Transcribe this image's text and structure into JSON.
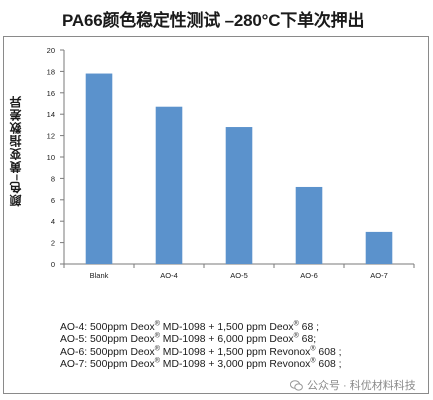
{
  "chart_data": {
    "type": "bar",
    "title": "PA66颜色稳定性测试 –280°C下单次押出",
    "ylabel": "颜色–黄变指数差异",
    "xlabel": "",
    "categories": [
      "Blank",
      "AO-4",
      "AO-5",
      "AO-6",
      "AO-7"
    ],
    "values": [
      17.8,
      14.7,
      12.8,
      7.2,
      3.0
    ],
    "ylim": [
      0,
      20
    ],
    "yticks": [
      0,
      2,
      4,
      6,
      8,
      10,
      12,
      14,
      16,
      18,
      20
    ],
    "grid": false,
    "bar_color": "#5b92cc"
  },
  "notes": [
    {
      "key": "AO-4:",
      "text": " 500ppm Deox® MD-1098 + 1,500 ppm Deox® 68 ;"
    },
    {
      "key": "AO-5:",
      "text": " 500ppm Deox® MD-1098 + 6,000 ppm Deox® 68;"
    },
    {
      "key": "AO-6:",
      "text": " 500ppm Deox® MD-1098 + 1,500 ppm Revonox® 608 ;"
    },
    {
      "key": "AO-7:",
      "text": " 500ppm Deox® MD-1098 + 3,000 ppm Revonox® 608 ;"
    }
  ],
  "watermark": {
    "text": "公众号 · 科优材料科技",
    "icon": "wechat-icon"
  }
}
